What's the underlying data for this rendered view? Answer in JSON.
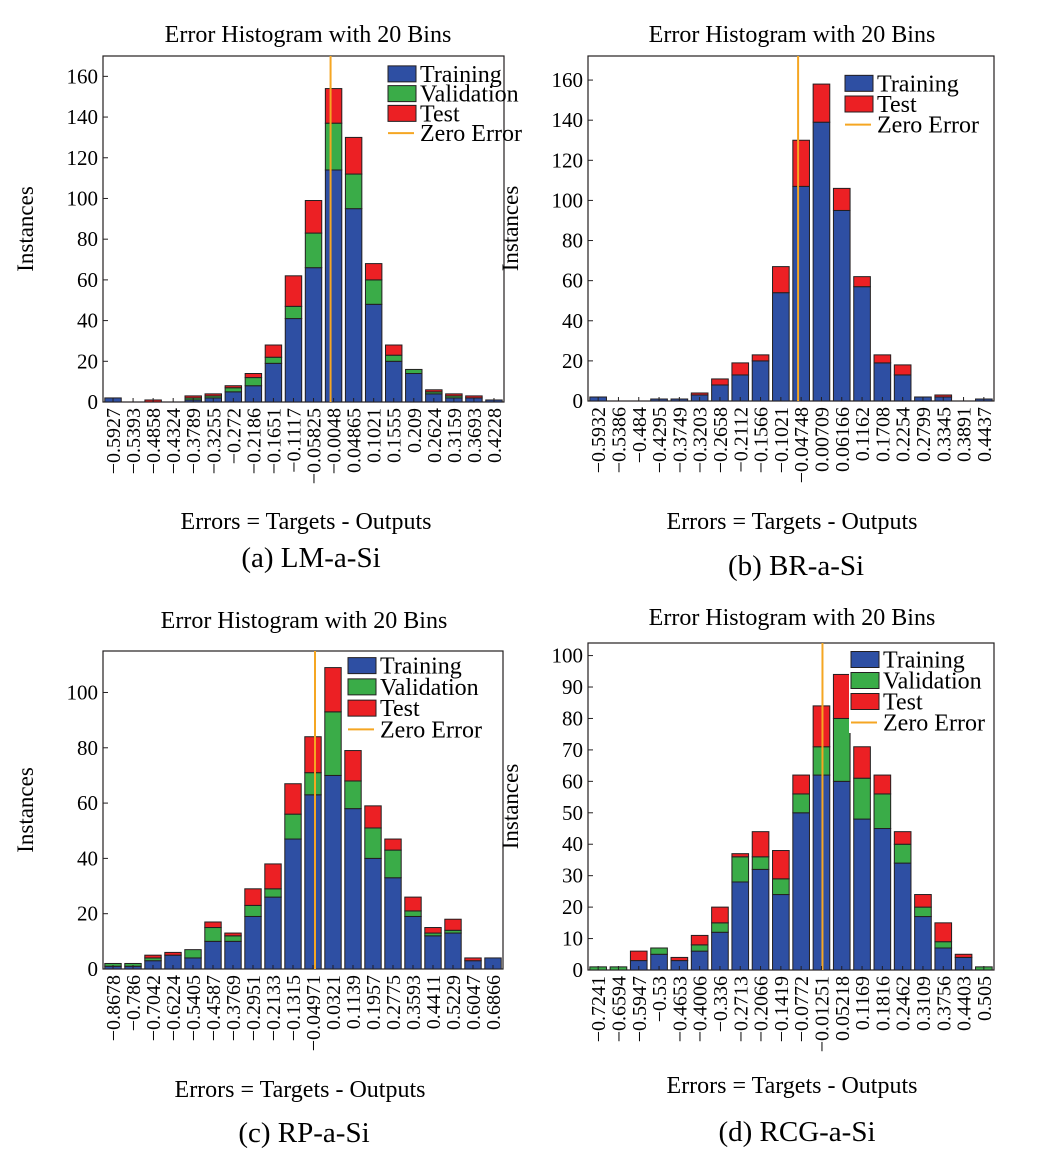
{
  "legend_labels": {
    "training": "Training",
    "validation": "Validation",
    "test": "Test",
    "zero": "Zero Error"
  },
  "colors": {
    "training": "#2e4fa3",
    "validation": "#3aac48",
    "test": "#ec2024",
    "zero": "#f5a623",
    "edge": "#231f20"
  },
  "chart_data": [
    {
      "type": "bar",
      "title": "Error Histogram with 20 Bins",
      "caption": "(a) LM-a-Si",
      "xlabel": "Errors = Targets - Outputs",
      "ylabel": "Instances",
      "ylim": [
        0,
        170
      ],
      "yticks": [
        0,
        20,
        40,
        60,
        80,
        100,
        120,
        140,
        160
      ],
      "categories": [
        "−0.5927",
        "−0.5393",
        "−0.4858",
        "−0.4324",
        "−0.3789",
        "−0.3255",
        "−0.272",
        "−0.2186",
        "−0.1651",
        "−0.1117",
        "−0.05825",
        "−0.0048",
        "0.04865",
        "0.1021",
        "0.1555",
        "0.209",
        "0.2624",
        "0.3159",
        "0.3693",
        "0.4228"
      ],
      "zero_error_bin": 11.35,
      "legend": [
        "training",
        "validation",
        "test",
        "zero"
      ],
      "series": [
        {
          "name": "Training",
          "values": [
            2,
            0,
            0,
            0,
            1,
            2,
            5,
            8,
            19,
            41,
            66,
            114,
            95,
            48,
            20,
            14,
            4,
            2,
            2,
            1
          ]
        },
        {
          "name": "Validation",
          "values": [
            0,
            0,
            0,
            0,
            1,
            1,
            2,
            4,
            3,
            6,
            17,
            23,
            17,
            12,
            3,
            2,
            1,
            1,
            0,
            0
          ]
        },
        {
          "name": "Test",
          "values": [
            0,
            0,
            1,
            0,
            1,
            1,
            1,
            2,
            6,
            15,
            16,
            17,
            18,
            8,
            5,
            0,
            1,
            1,
            1,
            0
          ]
        }
      ]
    },
    {
      "type": "bar",
      "title": "Error Histogram with 20 Bins",
      "caption": "(b) BR-a-Si",
      "xlabel": "Errors = Targets - Outputs",
      "ylabel": "Instances",
      "ylim": [
        0,
        172
      ],
      "yticks": [
        0,
        20,
        40,
        60,
        80,
        100,
        120,
        140,
        160
      ],
      "categories": [
        "−0.5932",
        "−0.5386",
        "−0.484",
        "−0.4295",
        "−0.3749",
        "−0.3203",
        "−0.2658",
        "−0.2112",
        "−0.1566",
        "−0.1021",
        "−0.04748",
        "0.00709",
        "0.06166",
        "0.1162",
        "0.1708",
        "0.2254",
        "0.2799",
        "0.3345",
        "0.3891",
        "0.4437"
      ],
      "zero_error_bin": 10.35,
      "legend": [
        "training",
        "test",
        "zero"
      ],
      "series": [
        {
          "name": "Training",
          "values": [
            2,
            0,
            0,
            1,
            1,
            3,
            8,
            13,
            20,
            54,
            107,
            139,
            95,
            57,
            19,
            13,
            2,
            2,
            0,
            1
          ]
        },
        {
          "name": "Test",
          "values": [
            0,
            0,
            0,
            0,
            0,
            1,
            3,
            6,
            3,
            13,
            23,
            19,
            11,
            5,
            4,
            5,
            0,
            1,
            0,
            0
          ]
        }
      ]
    },
    {
      "type": "bar",
      "title": "Error Histogram with 20 Bins",
      "caption": "(c) RP-a-Si",
      "xlabel": "Errors = Targets - Outputs",
      "ylabel": "Instances",
      "ylim": [
        0,
        115
      ],
      "yticks": [
        0,
        20,
        40,
        60,
        80,
        100
      ],
      "categories": [
        "−0.8678",
        "−0.786",
        "−0.7042",
        "−0.6224",
        "−0.5405",
        "−0.4587",
        "−0.3769",
        "−0.2951",
        "−0.2133",
        "−0.1315",
        "−0.04971",
        "0.0321",
        "0.1139",
        "0.1957",
        "0.2775",
        "0.3593",
        "0.4411",
        "0.5229",
        "0.6047",
        "0.6866"
      ],
      "zero_error_bin": 10.6,
      "legend": [
        "training",
        "validation",
        "test",
        "zero"
      ],
      "series": [
        {
          "name": "Training",
          "values": [
            1,
            1,
            3,
            5,
            4,
            10,
            10,
            19,
            26,
            47,
            63,
            70,
            58,
            40,
            33,
            19,
            12,
            13,
            3,
            4
          ]
        },
        {
          "name": "Validation",
          "values": [
            1,
            1,
            1,
            0,
            3,
            5,
            2,
            4,
            3,
            9,
            8,
            23,
            10,
            11,
            10,
            2,
            1,
            1,
            0,
            0
          ]
        },
        {
          "name": "Test",
          "values": [
            0,
            0,
            1,
            1,
            0,
            2,
            1,
            6,
            9,
            11,
            13,
            16,
            11,
            8,
            4,
            5,
            2,
            4,
            1,
            0
          ]
        }
      ]
    },
    {
      "type": "bar",
      "title": "Error Histogram with 20 Bins",
      "caption": "(d) RCG-a-Si",
      "xlabel": "Errors = Targets - Outputs",
      "ylabel": "Instances",
      "ylim": [
        0,
        104
      ],
      "yticks": [
        0,
        10,
        20,
        30,
        40,
        50,
        60,
        70,
        80,
        90,
        100
      ],
      "categories": [
        "−0.7241",
        "−0.6594",
        "−0.5947",
        "−0.53",
        "−0.4653",
        "−0.4006",
        "−0.336",
        "−0.2713",
        "−0.2066",
        "−0.1419",
        "−0.0772",
        "−0.01251",
        "0.05218",
        "0.1169",
        "0.1816",
        "0.2462",
        "0.3109",
        "0.3756",
        "0.4403",
        "0.505"
      ],
      "zero_error_bin": 11.55,
      "legend": [
        "training",
        "validation",
        "test",
        "zero"
      ],
      "series": [
        {
          "name": "Training",
          "values": [
            0,
            0,
            3,
            5,
            3,
            6,
            12,
            28,
            32,
            24,
            50,
            62,
            60,
            48,
            45,
            34,
            17,
            7,
            4,
            0
          ]
        },
        {
          "name": "Validation",
          "values": [
            1,
            1,
            0,
            2,
            0,
            2,
            3,
            8,
            4,
            5,
            6,
            9,
            20,
            13,
            11,
            6,
            3,
            2,
            0,
            1
          ]
        },
        {
          "name": "Test",
          "values": [
            0,
            0,
            3,
            0,
            1,
            3,
            5,
            1,
            8,
            9,
            6,
            13,
            14,
            10,
            6,
            4,
            4,
            6,
            1,
            0
          ]
        }
      ]
    }
  ]
}
